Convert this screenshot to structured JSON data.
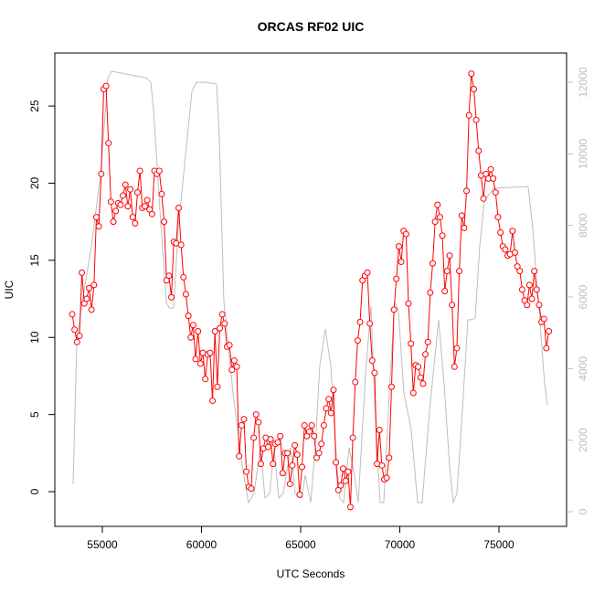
{
  "chart_data": {
    "type": "line",
    "title": "ORCAS RF02 UIC",
    "x_label": "UTC Seconds",
    "y_label": "UIC",
    "xlim": [
      52604,
      78410
    ],
    "xticks": [
      55000,
      60000,
      65000,
      70000,
      75000
    ],
    "ylim": [
      -2.25,
      28.44
    ],
    "yticks": [
      0,
      5,
      10,
      15,
      20,
      25
    ],
    "y2lim": [
      -408,
      12817
    ],
    "y2ticks": [
      0,
      2000,
      4000,
      6000,
      8000,
      10000,
      12000
    ],
    "series": [
      {
        "color": "#bebebe",
        "axis": "y2",
        "markers": false,
        "x": [
          53526,
          53710,
          53986,
          54447,
          54908,
          55281,
          55461,
          57212,
          57442,
          57581,
          57903,
          58226,
          58364,
          58594,
          58825,
          59286,
          59516,
          59746,
          60207,
          60760,
          60898,
          61128,
          61590,
          62050,
          62373,
          62650,
          62972,
          63202,
          63433,
          63663,
          63894,
          64124,
          64493,
          64723,
          65046,
          65230,
          65506,
          65736,
          65966,
          66243,
          66520,
          66796,
          66980,
          67164,
          67441,
          67718,
          67902,
          68271,
          68547,
          68732,
          69008,
          69192,
          69469,
          69745,
          69930,
          70206,
          70575,
          70897,
          71128,
          71496,
          71957,
          72233,
          72510,
          72694,
          72879,
          73155,
          73431,
          73570,
          73800,
          74030,
          74261,
          74722,
          76473,
          76702,
          77025,
          77302,
          77440
        ],
        "values": [
          766,
          4723,
          5872,
          7404,
          9446,
          12127,
          12305,
          12127,
          11999,
          11233,
          8425,
          5872,
          5693,
          5693,
          7914,
          10467,
          11744,
          11999,
          11999,
          11948,
          10467,
          5872,
          3319,
          1277,
          255,
          511,
          1787,
          383,
          511,
          1787,
          383,
          511,
          1787,
          511,
          383,
          1021,
          255,
          1787,
          4085,
          5106,
          4085,
          1532,
          383,
          255,
          1787,
          1021,
          255,
          3830,
          5744,
          3064,
          255,
          255,
          3319,
          5872,
          5617,
          3319,
          2298,
          255,
          255,
          2808,
          5361,
          3574,
          1277,
          255,
          511,
          2808,
          5361,
          5361,
          5412,
          7404,
          8680,
          9038,
          9089,
          7914,
          5617,
          3574,
          2987
        ]
      },
      {
        "color": "#ff0000",
        "markers": true,
        "x": [
          53480,
          53602,
          53724,
          53846,
          53968,
          54090,
          54212,
          54334,
          54456,
          54578,
          54700,
          54822,
          54944,
          55066,
          55188,
          55310,
          55432,
          55554,
          55676,
          55798,
          55920,
          56042,
          56164,
          56286,
          56408,
          56530,
          56652,
          56774,
          56896,
          57018,
          57140,
          57262,
          57384,
          57506,
          57628,
          57750,
          57872,
          57994,
          58116,
          58238,
          58360,
          58482,
          58604,
          58726,
          58848,
          58970,
          59092,
          59214,
          59336,
          59458,
          59580,
          59702,
          59824,
          59946,
          60068,
          60190,
          60312,
          60434,
          60556,
          60678,
          60800,
          60922,
          61044,
          61166,
          61288,
          61410,
          61532,
          61654,
          61776,
          61898,
          62020,
          62142,
          62264,
          62386,
          62508,
          62630,
          62752,
          62874,
          62996,
          63118,
          63240,
          63362,
          63484,
          63606,
          63728,
          63850,
          63972,
          64094,
          64216,
          64338,
          64460,
          64582,
          64704,
          64826,
          64948,
          65070,
          65192,
          65314,
          65436,
          65558,
          65680,
          65802,
          65924,
          66046,
          66168,
          66290,
          66412,
          66534,
          66656,
          66778,
          66900,
          67022,
          67144,
          67266,
          67388,
          67510,
          67632,
          67754,
          67876,
          67998,
          68120,
          68242,
          68364,
          68486,
          68608,
          68730,
          68852,
          68974,
          69096,
          69218,
          69340,
          69462,
          69584,
          69706,
          69828,
          69950,
          70072,
          70194,
          70316,
          70438,
          70560,
          70682,
          70804,
          70926,
          71048,
          71170,
          71292,
          71414,
          71536,
          71658,
          71780,
          71902,
          72024,
          72146,
          72268,
          72390,
          72512,
          72634,
          72756,
          72878,
          73000,
          73122,
          73244,
          73366,
          73488,
          73610,
          73732,
          73854,
          73976,
          74098,
          74220,
          74342,
          74464,
          74586,
          74708,
          74830,
          74952,
          75074,
          75196,
          75318,
          75440,
          75562,
          75684,
          75806,
          75928,
          76050,
          76172,
          76294,
          76416,
          76538,
          76660,
          76782,
          76904,
          77026,
          77148,
          77270,
          77392,
          77514
        ],
        "values": [
          11.5,
          10.5,
          9.7,
          10.1,
          14.2,
          12.2,
          12.5,
          13.2,
          11.8,
          13.4,
          17.8,
          17.2,
          20.6,
          26.1,
          26.3,
          22.6,
          18.8,
          17.5,
          18.2,
          18.7,
          18.6,
          19.2,
          19.9,
          18.5,
          19.6,
          17.8,
          17.4,
          19.4,
          20.8,
          18.4,
          18.5,
          18.9,
          18.3,
          18,
          20.8,
          20.6,
          20.8,
          19.3,
          17.5,
          13.7,
          14,
          12.6,
          16.2,
          16.1,
          18.4,
          16,
          13.9,
          12.8,
          11.4,
          10,
          10.8,
          8.6,
          10.4,
          8.3,
          9,
          7.3,
          8.9,
          9,
          5.9,
          10.4,
          6.8,
          10.6,
          11.5,
          10.9,
          9.4,
          9.5,
          7.9,
          8.5,
          8.1,
          2.3,
          4.3,
          4.7,
          1.3,
          0.3,
          0.2,
          3.5,
          5,
          4.5,
          1.8,
          2.8,
          3.5,
          2.9,
          3.4,
          1.8,
          3.1,
          3.2,
          3.6,
          1.2,
          2.5,
          2.5,
          0.5,
          1.7,
          3,
          2.4,
          -0.2,
          1.6,
          4.3,
          3.6,
          3.9,
          4.3,
          3.6,
          2.2,
          2.5,
          3.1,
          4.3,
          5.4,
          6,
          5.1,
          6.6,
          1.9,
          0.1,
          0.4,
          1.5,
          0.7,
          1.3,
          -1,
          3.5,
          7.1,
          9.8,
          11,
          13.7,
          14,
          14.2,
          10.9,
          8.5,
          7.7,
          1.8,
          4,
          1.7,
          0.8,
          0.9,
          2.2,
          6.8,
          11.8,
          13.8,
          15.9,
          14.9,
          16.9,
          16.7,
          12.2,
          9.6,
          6.4,
          8.2,
          8.1,
          7.4,
          7,
          8.9,
          9.7,
          12.9,
          14.8,
          17.5,
          18.6,
          17.8,
          16.6,
          13,
          14.3,
          15.3,
          12.1,
          8.1,
          9.3,
          14.3,
          17.9,
          17.1,
          19.5,
          24.4,
          27.1,
          26.1,
          24.1,
          22.1,
          20.5,
          19,
          20.6,
          20.3,
          20.9,
          20.3,
          19.4,
          17.8,
          16.8,
          15.9,
          15.7,
          15.3,
          15.4,
          16.9,
          15.5,
          14.6,
          14.3,
          13.1,
          12.4,
          12.1,
          13.4,
          12.5,
          14.3,
          13.1,
          12.1,
          11,
          11.2,
          9.3,
          10.4
        ]
      }
    ]
  }
}
